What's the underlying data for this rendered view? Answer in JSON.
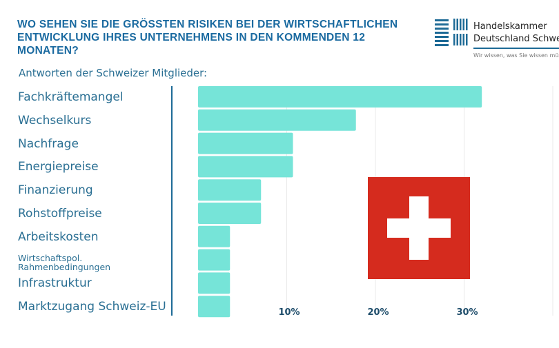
{
  "header": {
    "title": "WO SEHEN SIE DIE GRÖSSTEN RISIKEN BEI DER WIRTSCHAFTLICHEN ENTWICKLUNG IHRES UNTERNEHMENS IN DEN KOMMENDEN 12 MONATEN?",
    "subtitle": "Antworten der Schweizer Mitglieder:"
  },
  "logo": {
    "line1": "Handelskammer",
    "line2": "Deutschland Schweiz",
    "tagline": "Wir wissen, was Sie wissen müssen"
  },
  "colors": {
    "bar": "#76e4d8",
    "title": "#1a6aa0",
    "label": "#2a6f93",
    "flag_red": "#d52b1e"
  },
  "chart_data": {
    "type": "bar",
    "orientation": "horizontal",
    "categories": [
      "Fachkräftemangel",
      "Wechselkurs",
      "Nachfrage",
      "Energiepreise",
      "Finanzierung",
      "Rohstoffpreise",
      "Arbeitskosten",
      "Wirtschaftspol. Rahmenbedingungen",
      "Infrastruktur",
      "Marktzugang Schweiz-EU"
    ],
    "values": [
      32,
      17.8,
      10.7,
      10.7,
      7.1,
      7.1,
      3.6,
      3.6,
      3.6,
      3.6
    ],
    "unit": "%",
    "xlim": [
      0,
      40
    ],
    "ticks": [
      "10%",
      "20%",
      "30%"
    ],
    "grid": true,
    "decoration": "swiss-flag"
  }
}
